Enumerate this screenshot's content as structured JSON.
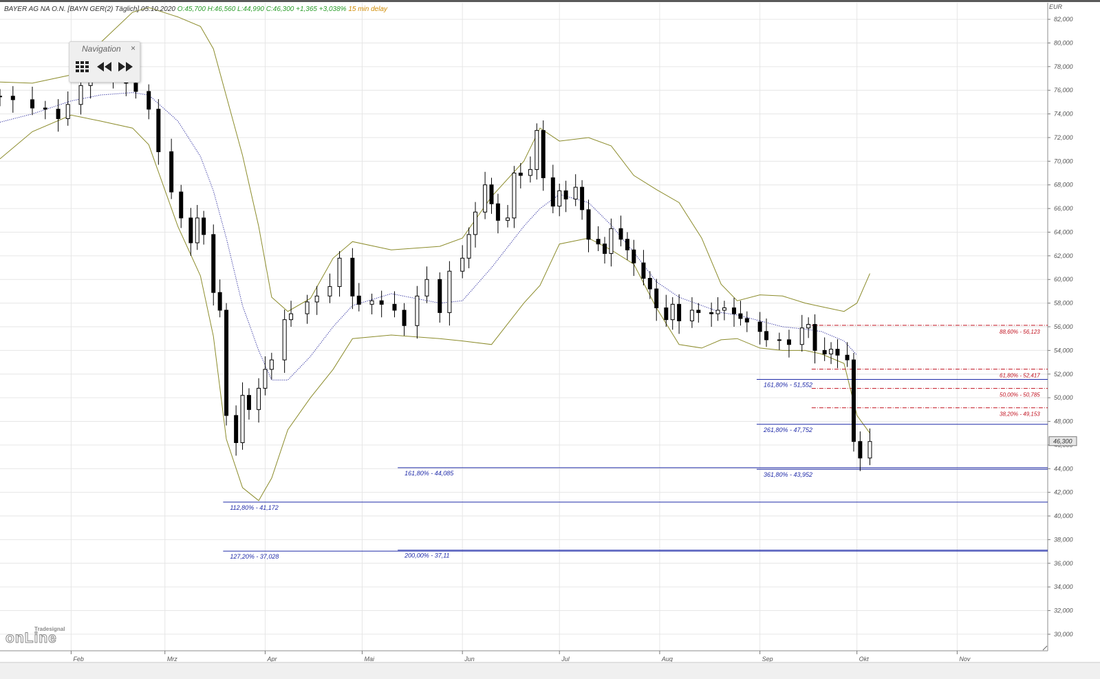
{
  "header": {
    "title": "BAYER AG NA O.N. [BAYN GER(2) Täglich] 05.10.2020",
    "ohlc": "O:45,700 H:46,560 L:44,990 C:46,300 +1,365 +3,038%",
    "delay": "15 min delay"
  },
  "navigation": {
    "title": "Navigation",
    "close_icon": "close-icon",
    "buttons": [
      "grid-icon",
      "rewind-icon",
      "fast-forward-icon"
    ]
  },
  "logo": {
    "small": "Tradesignal",
    "big": "onLine"
  },
  "colors": {
    "bollinger": "#8b8b2a",
    "moving_average": "#2a2a9d",
    "fib_blue": "#1f2aa8",
    "fib_red": "#c0111f",
    "candle": "#000000"
  },
  "chart_data": {
    "type": "candlestick",
    "y_axis": {
      "unit": "EUR",
      "ylim": [
        28.6,
        83.4
      ],
      "ticks": [
        "82,000",
        "80,000",
        "78,000",
        "76,000",
        "74,000",
        "72,000",
        "70,000",
        "68,000",
        "66,000",
        "64,000",
        "62,000",
        "60,000",
        "58,000",
        "56,000",
        "54,000",
        "52,000",
        "50,000",
        "48,000",
        "46,000",
        "44,000",
        "42,000",
        "40,000",
        "38,000",
        "36,000",
        "34,000",
        "32,000",
        "30,000"
      ],
      "tick_values": [
        82,
        80,
        78,
        76,
        74,
        72,
        70,
        68,
        66,
        64,
        62,
        60,
        58,
        56,
        54,
        52,
        50,
        48,
        46,
        44,
        42,
        40,
        38,
        36,
        34,
        32,
        30
      ],
      "last_price_label": "46,300",
      "last_price": 46.3
    },
    "x_axis": {
      "months": [
        "Feb",
        "Mrz",
        "Apr",
        "Mai",
        "Jun",
        "Jul",
        "Aug",
        "Sep",
        "Okt",
        "Nov"
      ],
      "month_dates": [
        "2020-02-01",
        "2020-03-01",
        "2020-04-01",
        "2020-05-01",
        "2020-06-01",
        "2020-07-01",
        "2020-08-01",
        "2020-09-01",
        "2020-10-01",
        "2020-11-01"
      ],
      "range": [
        "2020-01-10",
        "2020-11-29"
      ]
    },
    "grid": true,
    "series": [
      {
        "kind": "close",
        "values": [
          [
            "2020-01-10",
            75.5
          ],
          [
            "2020-01-14",
            75.2
          ],
          [
            "2020-01-20",
            74.5
          ],
          [
            "2020-01-24",
            74.4
          ],
          [
            "2020-01-28",
            73.6
          ],
          [
            "2020-01-31",
            74.8
          ],
          [
            "2020-02-04",
            76.4
          ],
          [
            "2020-02-07",
            77.8
          ],
          [
            "2020-02-11",
            78.0
          ],
          [
            "2020-02-14",
            77.0
          ],
          [
            "2020-02-18",
            76.6
          ],
          [
            "2020-02-21",
            75.9
          ],
          [
            "2020-02-25",
            74.4
          ],
          [
            "2020-02-28",
            70.8
          ],
          [
            "2020-03-03",
            67.4
          ],
          [
            "2020-03-06",
            65.2
          ],
          [
            "2020-03-09",
            63.1
          ],
          [
            "2020-03-11",
            65.2
          ],
          [
            "2020-03-13",
            63.8
          ],
          [
            "2020-03-16",
            58.9
          ],
          [
            "2020-03-18",
            57.4
          ],
          [
            "2020-03-20",
            48.5
          ],
          [
            "2020-03-23",
            46.2
          ],
          [
            "2020-03-25",
            50.2
          ],
          [
            "2020-03-27",
            49.0
          ],
          [
            "2020-03-30",
            50.8
          ],
          [
            "2020-04-01",
            52.4
          ],
          [
            "2020-04-03",
            53.2
          ],
          [
            "2020-04-07",
            56.6
          ],
          [
            "2020-04-09",
            57.1
          ],
          [
            "2020-04-14",
            58.1
          ],
          [
            "2020-04-17",
            58.6
          ],
          [
            "2020-04-21",
            59.4
          ],
          [
            "2020-04-24",
            61.8
          ],
          [
            "2020-04-28",
            58.6
          ],
          [
            "2020-04-30",
            57.9
          ],
          [
            "2020-05-04",
            58.2
          ],
          [
            "2020-05-07",
            57.9
          ],
          [
            "2020-05-11",
            57.4
          ],
          [
            "2020-05-14",
            56.1
          ],
          [
            "2020-05-18",
            58.6
          ],
          [
            "2020-05-21",
            60.0
          ],
          [
            "2020-05-25",
            57.2
          ],
          [
            "2020-05-28",
            60.7
          ],
          [
            "2020-06-01",
            61.8
          ],
          [
            "2020-06-03",
            63.8
          ],
          [
            "2020-06-05",
            65.7
          ],
          [
            "2020-06-08",
            68.0
          ],
          [
            "2020-06-10",
            66.4
          ],
          [
            "2020-06-12",
            65.0
          ],
          [
            "2020-06-15",
            65.2
          ],
          [
            "2020-06-17",
            69.0
          ],
          [
            "2020-06-19",
            68.8
          ],
          [
            "2020-06-22",
            69.3
          ],
          [
            "2020-06-24",
            72.6
          ],
          [
            "2020-06-26",
            68.6
          ],
          [
            "2020-06-29",
            66.2
          ],
          [
            "2020-07-01",
            67.5
          ],
          [
            "2020-07-03",
            66.8
          ],
          [
            "2020-07-06",
            67.8
          ],
          [
            "2020-07-08",
            65.9
          ],
          [
            "2020-07-10",
            63.4
          ],
          [
            "2020-07-13",
            63.0
          ],
          [
            "2020-07-15",
            62.2
          ],
          [
            "2020-07-17",
            64.3
          ],
          [
            "2020-07-20",
            63.4
          ],
          [
            "2020-07-22",
            62.5
          ],
          [
            "2020-07-24",
            61.4
          ],
          [
            "2020-07-27",
            60.1
          ],
          [
            "2020-07-29",
            59.2
          ],
          [
            "2020-07-31",
            57.6
          ],
          [
            "2020-08-03",
            56.6
          ],
          [
            "2020-08-05",
            57.9
          ],
          [
            "2020-08-07",
            56.5
          ],
          [
            "2020-08-11",
            57.4
          ],
          [
            "2020-08-13",
            57.2
          ],
          [
            "2020-08-17",
            57.1
          ],
          [
            "2020-08-19",
            57.4
          ],
          [
            "2020-08-21",
            57.6
          ],
          [
            "2020-08-24",
            57.1
          ],
          [
            "2020-08-26",
            56.7
          ],
          [
            "2020-08-28",
            56.4
          ],
          [
            "2020-09-01",
            55.6
          ],
          [
            "2020-09-03",
            54.9
          ],
          [
            "2020-09-07",
            54.9
          ],
          [
            "2020-09-10",
            54.5
          ],
          [
            "2020-09-14",
            55.9
          ],
          [
            "2020-09-16",
            56.2
          ],
          [
            "2020-09-18",
            54.0
          ],
          [
            "2020-09-21",
            53.7
          ],
          [
            "2020-09-23",
            54.1
          ],
          [
            "2020-09-25",
            53.6
          ],
          [
            "2020-09-28",
            53.2
          ],
          [
            "2020-09-30",
            46.3
          ],
          [
            "2020-10-02",
            44.9
          ],
          [
            "2020-10-05",
            46.3
          ]
        ]
      }
    ],
    "fib_levels": [
      {
        "label": "161,80% - 51,552",
        "value": 51.552,
        "x_start": "2020-08-31",
        "x_end": "2020-11-29",
        "color": "blue"
      },
      {
        "label": "261,80% - 47,752",
        "value": 47.752,
        "x_start": "2020-08-31",
        "x_end": "2020-11-29",
        "color": "blue"
      },
      {
        "label": "361,80% - 43,952",
        "value": 43.952,
        "x_start": "2020-08-31",
        "x_end": "2020-11-29",
        "color": "blue"
      },
      {
        "label": "161,80% - 44,085",
        "value": 44.085,
        "x_start": "2020-05-12",
        "x_end": "2020-11-29",
        "color": "blue"
      },
      {
        "label": "200,00% - 37,11",
        "value": 37.11,
        "x_start": "2020-05-12",
        "x_end": "2020-11-29",
        "color": "blue"
      },
      {
        "label": "112,80% - 41,172",
        "value": 41.172,
        "x_start": "2020-03-19",
        "x_end": "2020-11-29",
        "color": "blue"
      },
      {
        "label": "127,20% - 37,028",
        "value": 37.028,
        "x_start": "2020-03-19",
        "x_end": "2020-11-29",
        "color": "blue"
      },
      {
        "label": "88,60% - 56,123",
        "value": 56.123,
        "x_start": "2020-09-17",
        "x_end": "2020-11-29",
        "color": "red"
      },
      {
        "label": "61,80% - 52,417",
        "value": 52.417,
        "x_start": "2020-09-17",
        "x_end": "2020-11-29",
        "color": "red"
      },
      {
        "label": "50,00% - 50,785",
        "value": 50.785,
        "x_start": "2020-09-17",
        "x_end": "2020-11-29",
        "color": "red"
      },
      {
        "label": "38,20% - 49,153",
        "value": 49.153,
        "x_start": "2020-09-17",
        "x_end": "2020-11-29",
        "color": "red"
      }
    ],
    "bollinger_upper": [
      [
        "2020-01-10",
        76.7
      ],
      [
        "2020-01-20",
        76.6
      ],
      [
        "2020-02-01",
        77.3
      ],
      [
        "2020-02-10",
        80.0
      ],
      [
        "2020-02-20",
        82.6
      ],
      [
        "2020-02-25",
        83.0
      ],
      [
        "2020-03-05",
        82.2
      ],
      [
        "2020-03-12",
        81.4
      ],
      [
        "2020-03-16",
        79.5
      ],
      [
        "2020-03-20",
        75.5
      ],
      [
        "2020-03-25",
        70.5
      ],
      [
        "2020-03-30",
        64.5
      ],
      [
        "2020-04-03",
        58.5
      ],
      [
        "2020-04-08",
        57.3
      ],
      [
        "2020-04-15",
        58.4
      ],
      [
        "2020-04-22",
        61.8
      ],
      [
        "2020-04-28",
        63.2
      ],
      [
        "2020-05-10",
        62.5
      ],
      [
        "2020-05-25",
        62.8
      ],
      [
        "2020-06-01",
        63.5
      ],
      [
        "2020-06-10",
        67.0
      ],
      [
        "2020-06-20",
        70.0
      ],
      [
        "2020-06-25",
        72.8
      ],
      [
        "2020-07-01",
        71.7
      ],
      [
        "2020-07-10",
        72.0
      ],
      [
        "2020-07-17",
        71.3
      ],
      [
        "2020-07-24",
        68.8
      ],
      [
        "2020-07-31",
        67.6
      ],
      [
        "2020-08-07",
        66.5
      ],
      [
        "2020-08-14",
        63.5
      ],
      [
        "2020-08-20",
        59.6
      ],
      [
        "2020-08-25",
        58.2
      ],
      [
        "2020-09-01",
        58.7
      ],
      [
        "2020-09-08",
        58.6
      ],
      [
        "2020-09-15",
        58.0
      ],
      [
        "2020-09-20",
        57.7
      ],
      [
        "2020-09-27",
        57.3
      ],
      [
        "2020-10-01",
        58.0
      ],
      [
        "2020-10-05",
        60.5
      ]
    ],
    "bollinger_lower": [
      [
        "2020-01-10",
        70.2
      ],
      [
        "2020-01-20",
        72.5
      ],
      [
        "2020-02-01",
        73.9
      ],
      [
        "2020-02-10",
        73.4
      ],
      [
        "2020-02-20",
        72.8
      ],
      [
        "2020-02-25",
        71.4
      ],
      [
        "2020-03-05",
        64.5
      ],
      [
        "2020-03-12",
        60.3
      ],
      [
        "2020-03-16",
        55.2
      ],
      [
        "2020-03-20",
        46.5
      ],
      [
        "2020-03-25",
        42.4
      ],
      [
        "2020-03-30",
        41.3
      ],
      [
        "2020-04-03",
        43.2
      ],
      [
        "2020-04-08",
        47.3
      ],
      [
        "2020-04-15",
        50.0
      ],
      [
        "2020-04-22",
        52.4
      ],
      [
        "2020-04-28",
        55.0
      ],
      [
        "2020-05-10",
        55.3
      ],
      [
        "2020-05-25",
        55.0
      ],
      [
        "2020-06-01",
        54.8
      ],
      [
        "2020-06-10",
        54.5
      ],
      [
        "2020-06-20",
        58.0
      ],
      [
        "2020-06-25",
        59.5
      ],
      [
        "2020-07-01",
        63.0
      ],
      [
        "2020-07-10",
        63.5
      ],
      [
        "2020-07-17",
        62.5
      ],
      [
        "2020-07-24",
        61.3
      ],
      [
        "2020-07-31",
        57.6
      ],
      [
        "2020-08-07",
        54.5
      ],
      [
        "2020-08-14",
        54.2
      ],
      [
        "2020-08-20",
        54.9
      ],
      [
        "2020-08-25",
        55.0
      ],
      [
        "2020-09-01",
        54.2
      ],
      [
        "2020-09-08",
        54.0
      ],
      [
        "2020-09-15",
        54.0
      ],
      [
        "2020-09-20",
        53.7
      ],
      [
        "2020-09-27",
        52.9
      ],
      [
        "2020-10-01",
        48.5
      ],
      [
        "2020-10-05",
        47.0
      ]
    ],
    "moving_average": [
      [
        "2020-01-10",
        73.3
      ],
      [
        "2020-01-20",
        74.0
      ],
      [
        "2020-02-01",
        75.1
      ],
      [
        "2020-02-10",
        75.6
      ],
      [
        "2020-02-20",
        75.8
      ],
      [
        "2020-02-25",
        75.6
      ],
      [
        "2020-03-05",
        73.4
      ],
      [
        "2020-03-12",
        70.4
      ],
      [
        "2020-03-16",
        67.5
      ],
      [
        "2020-03-20",
        63.5
      ],
      [
        "2020-03-25",
        57.8
      ],
      [
        "2020-03-30",
        54.0
      ],
      [
        "2020-04-03",
        51.5
      ],
      [
        "2020-04-08",
        51.5
      ],
      [
        "2020-04-15",
        53.5
      ],
      [
        "2020-04-22",
        56.0
      ],
      [
        "2020-04-28",
        57.8
      ],
      [
        "2020-05-10",
        58.8
      ],
      [
        "2020-05-25",
        58.0
      ],
      [
        "2020-06-01",
        58.2
      ],
      [
        "2020-06-10",
        61.0
      ],
      [
        "2020-06-20",
        64.5
      ],
      [
        "2020-06-25",
        66.0
      ],
      [
        "2020-07-01",
        67.2
      ],
      [
        "2020-07-10",
        66.5
      ],
      [
        "2020-07-17",
        64.6
      ],
      [
        "2020-07-24",
        62.3
      ],
      [
        "2020-07-31",
        59.8
      ],
      [
        "2020-08-07",
        58.5
      ],
      [
        "2020-08-14",
        57.8
      ],
      [
        "2020-08-20",
        57.2
      ],
      [
        "2020-08-25",
        57.0
      ],
      [
        "2020-09-01",
        56.5
      ],
      [
        "2020-09-08",
        56.0
      ],
      [
        "2020-09-15",
        55.8
      ],
      [
        "2020-09-20",
        55.6
      ],
      [
        "2020-09-27",
        54.8
      ],
      [
        "2020-10-01",
        53.6
      ]
    ]
  }
}
